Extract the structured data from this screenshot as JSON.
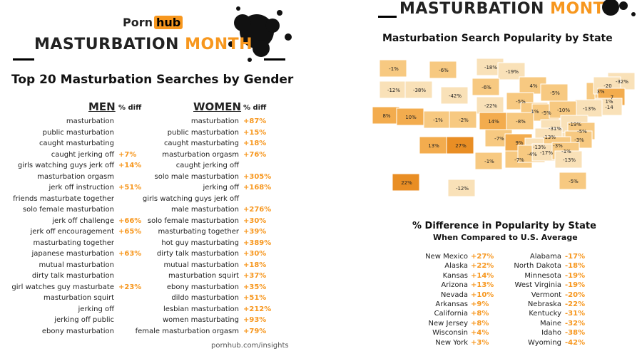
{
  "left": {
    "logo": {
      "part1": "Porn",
      "part2": "hub"
    },
    "banner": {
      "part1": "MASTURBATION ",
      "part2": "MONTH"
    },
    "title": "Top 20 Masturbation Searches by Gender",
    "men_header": "MEN",
    "women_header": "WOMEN",
    "pct_header": "% diff",
    "footer": "pornhub.com/insights",
    "accent": "#f7971e"
  },
  "right": {
    "banner": {
      "part1": "MASTURBATION ",
      "part2": "MONTH"
    },
    "map_title": "Masturbation Search Popularity by State",
    "table_title": "% Difference in Popularity by State",
    "table_subtitle": "When Compared to U.S. Average"
  },
  "chart_data": [
    {
      "type": "table",
      "title": "Top 20 Masturbation Searches by Gender",
      "men": [
        {
          "term": "masturbation",
          "diff": ""
        },
        {
          "term": "public masturbation",
          "diff": ""
        },
        {
          "term": "caught masturbating",
          "diff": ""
        },
        {
          "term": "caught jerking off",
          "diff": "+7%"
        },
        {
          "term": "girls watching guys jerk off",
          "diff": "+14%"
        },
        {
          "term": "masturbation orgasm",
          "diff": ""
        },
        {
          "term": "jerk off instruction",
          "diff": "+51%"
        },
        {
          "term": "friends masturbate together",
          "diff": ""
        },
        {
          "term": "solo female masturbation",
          "diff": ""
        },
        {
          "term": "jerk off challenge",
          "diff": "+66%"
        },
        {
          "term": "jerk off encouragement",
          "diff": "+65%"
        },
        {
          "term": "masturbating together",
          "diff": ""
        },
        {
          "term": "japanese masturbation",
          "diff": "+63%"
        },
        {
          "term": "mutual masturbation",
          "diff": ""
        },
        {
          "term": "dirty talk masturbation",
          "diff": ""
        },
        {
          "term": "girl watches guy masturbate",
          "diff": "+23%"
        },
        {
          "term": "masturbation squirt",
          "diff": ""
        },
        {
          "term": "jerking off",
          "diff": ""
        },
        {
          "term": "jerking off public",
          "diff": ""
        },
        {
          "term": "ebony masturbation",
          "diff": ""
        }
      ],
      "women": [
        {
          "term": "masturbation",
          "diff": "+87%"
        },
        {
          "term": "public masturbation",
          "diff": "+15%"
        },
        {
          "term": "caught masturbating",
          "diff": "+18%"
        },
        {
          "term": "masturbation orgasm",
          "diff": "+76%"
        },
        {
          "term": "caught jerking off",
          "diff": ""
        },
        {
          "term": "solo male masturbation",
          "diff": "+305%"
        },
        {
          "term": "jerking off",
          "diff": "+168%"
        },
        {
          "term": "girls watching guys jerk off",
          "diff": ""
        },
        {
          "term": "male masturbation",
          "diff": "+276%"
        },
        {
          "term": "solo female masturbation",
          "diff": "+30%"
        },
        {
          "term": "masturbating together",
          "diff": "+39%"
        },
        {
          "term": "hot guy masturbating",
          "diff": "+389%"
        },
        {
          "term": "dirty talk masturbation",
          "diff": "+30%"
        },
        {
          "term": "mutual masturbation",
          "diff": "+18%"
        },
        {
          "term": "masturbation squirt",
          "diff": "+37%"
        },
        {
          "term": "ebony masturbation",
          "diff": "+35%"
        },
        {
          "term": "dildo masturbation",
          "diff": "+51%"
        },
        {
          "term": "lesbian masturbation",
          "diff": "+212%"
        },
        {
          "term": "women masturbating",
          "diff": "+93%"
        },
        {
          "term": "female masturbation orgasm",
          "diff": "+79%"
        }
      ]
    },
    {
      "type": "heatmap",
      "title": "Masturbation Search Popularity by State",
      "map_labels": [
        "-1%",
        "-6%",
        "-18%",
        "-19%",
        "-32%",
        "-12%",
        "-38%",
        "-42%",
        "-6%",
        "4%",
        "-5%",
        "3%",
        "1%",
        "-20",
        "7",
        "-14",
        "-13%",
        "-22%",
        "-5%",
        "8%",
        "10%",
        "-1%",
        "-2%",
        "14%",
        "1%",
        "-5%",
        "-10%",
        "-8%",
        "-31%",
        "-19%",
        "-5%",
        "-13%",
        "-3%",
        "13%",
        "27%",
        "-7%",
        "9%",
        "-13%",
        "-3%",
        "-1%",
        "-7%",
        "-4%",
        "-17%",
        "-1%",
        "-13%",
        "-5%",
        "22%",
        "-12%"
      ],
      "legend_colors": [
        "#f9e1b8",
        "#f7c981",
        "#f3ac4e",
        "#e98e24"
      ]
    },
    {
      "type": "table",
      "title": "% Difference in Popularity by State",
      "subtitle": "When Compared to U.S. Average",
      "top": [
        {
          "state": "New Mexico",
          "value": "+27%"
        },
        {
          "state": "Alaska",
          "value": "+22%"
        },
        {
          "state": "Kansas",
          "value": "+14%"
        },
        {
          "state": "Arizona",
          "value": "+13%"
        },
        {
          "state": "Nevada",
          "value": "+10%"
        },
        {
          "state": "Arkansas",
          "value": "+9%"
        },
        {
          "state": "California",
          "value": "+8%"
        },
        {
          "state": "New Jersey",
          "value": "+8%"
        },
        {
          "state": "Wisconsin",
          "value": "+4%"
        },
        {
          "state": "New York",
          "value": "+3%"
        }
      ],
      "bottom": [
        {
          "state": "Alabama",
          "value": "-17%"
        },
        {
          "state": "North Dakota",
          "value": "-18%"
        },
        {
          "state": "Minnesota",
          "value": "-19%"
        },
        {
          "state": "West Virginia",
          "value": "-19%"
        },
        {
          "state": "Vermont",
          "value": "-20%"
        },
        {
          "state": "Nebraska",
          "value": "-22%"
        },
        {
          "state": "Kentucky",
          "value": "-31%"
        },
        {
          "state": "Maine",
          "value": "-32%"
        },
        {
          "state": "Idaho",
          "value": "-38%"
        },
        {
          "state": "Wyoming",
          "value": "-42%"
        }
      ]
    }
  ]
}
